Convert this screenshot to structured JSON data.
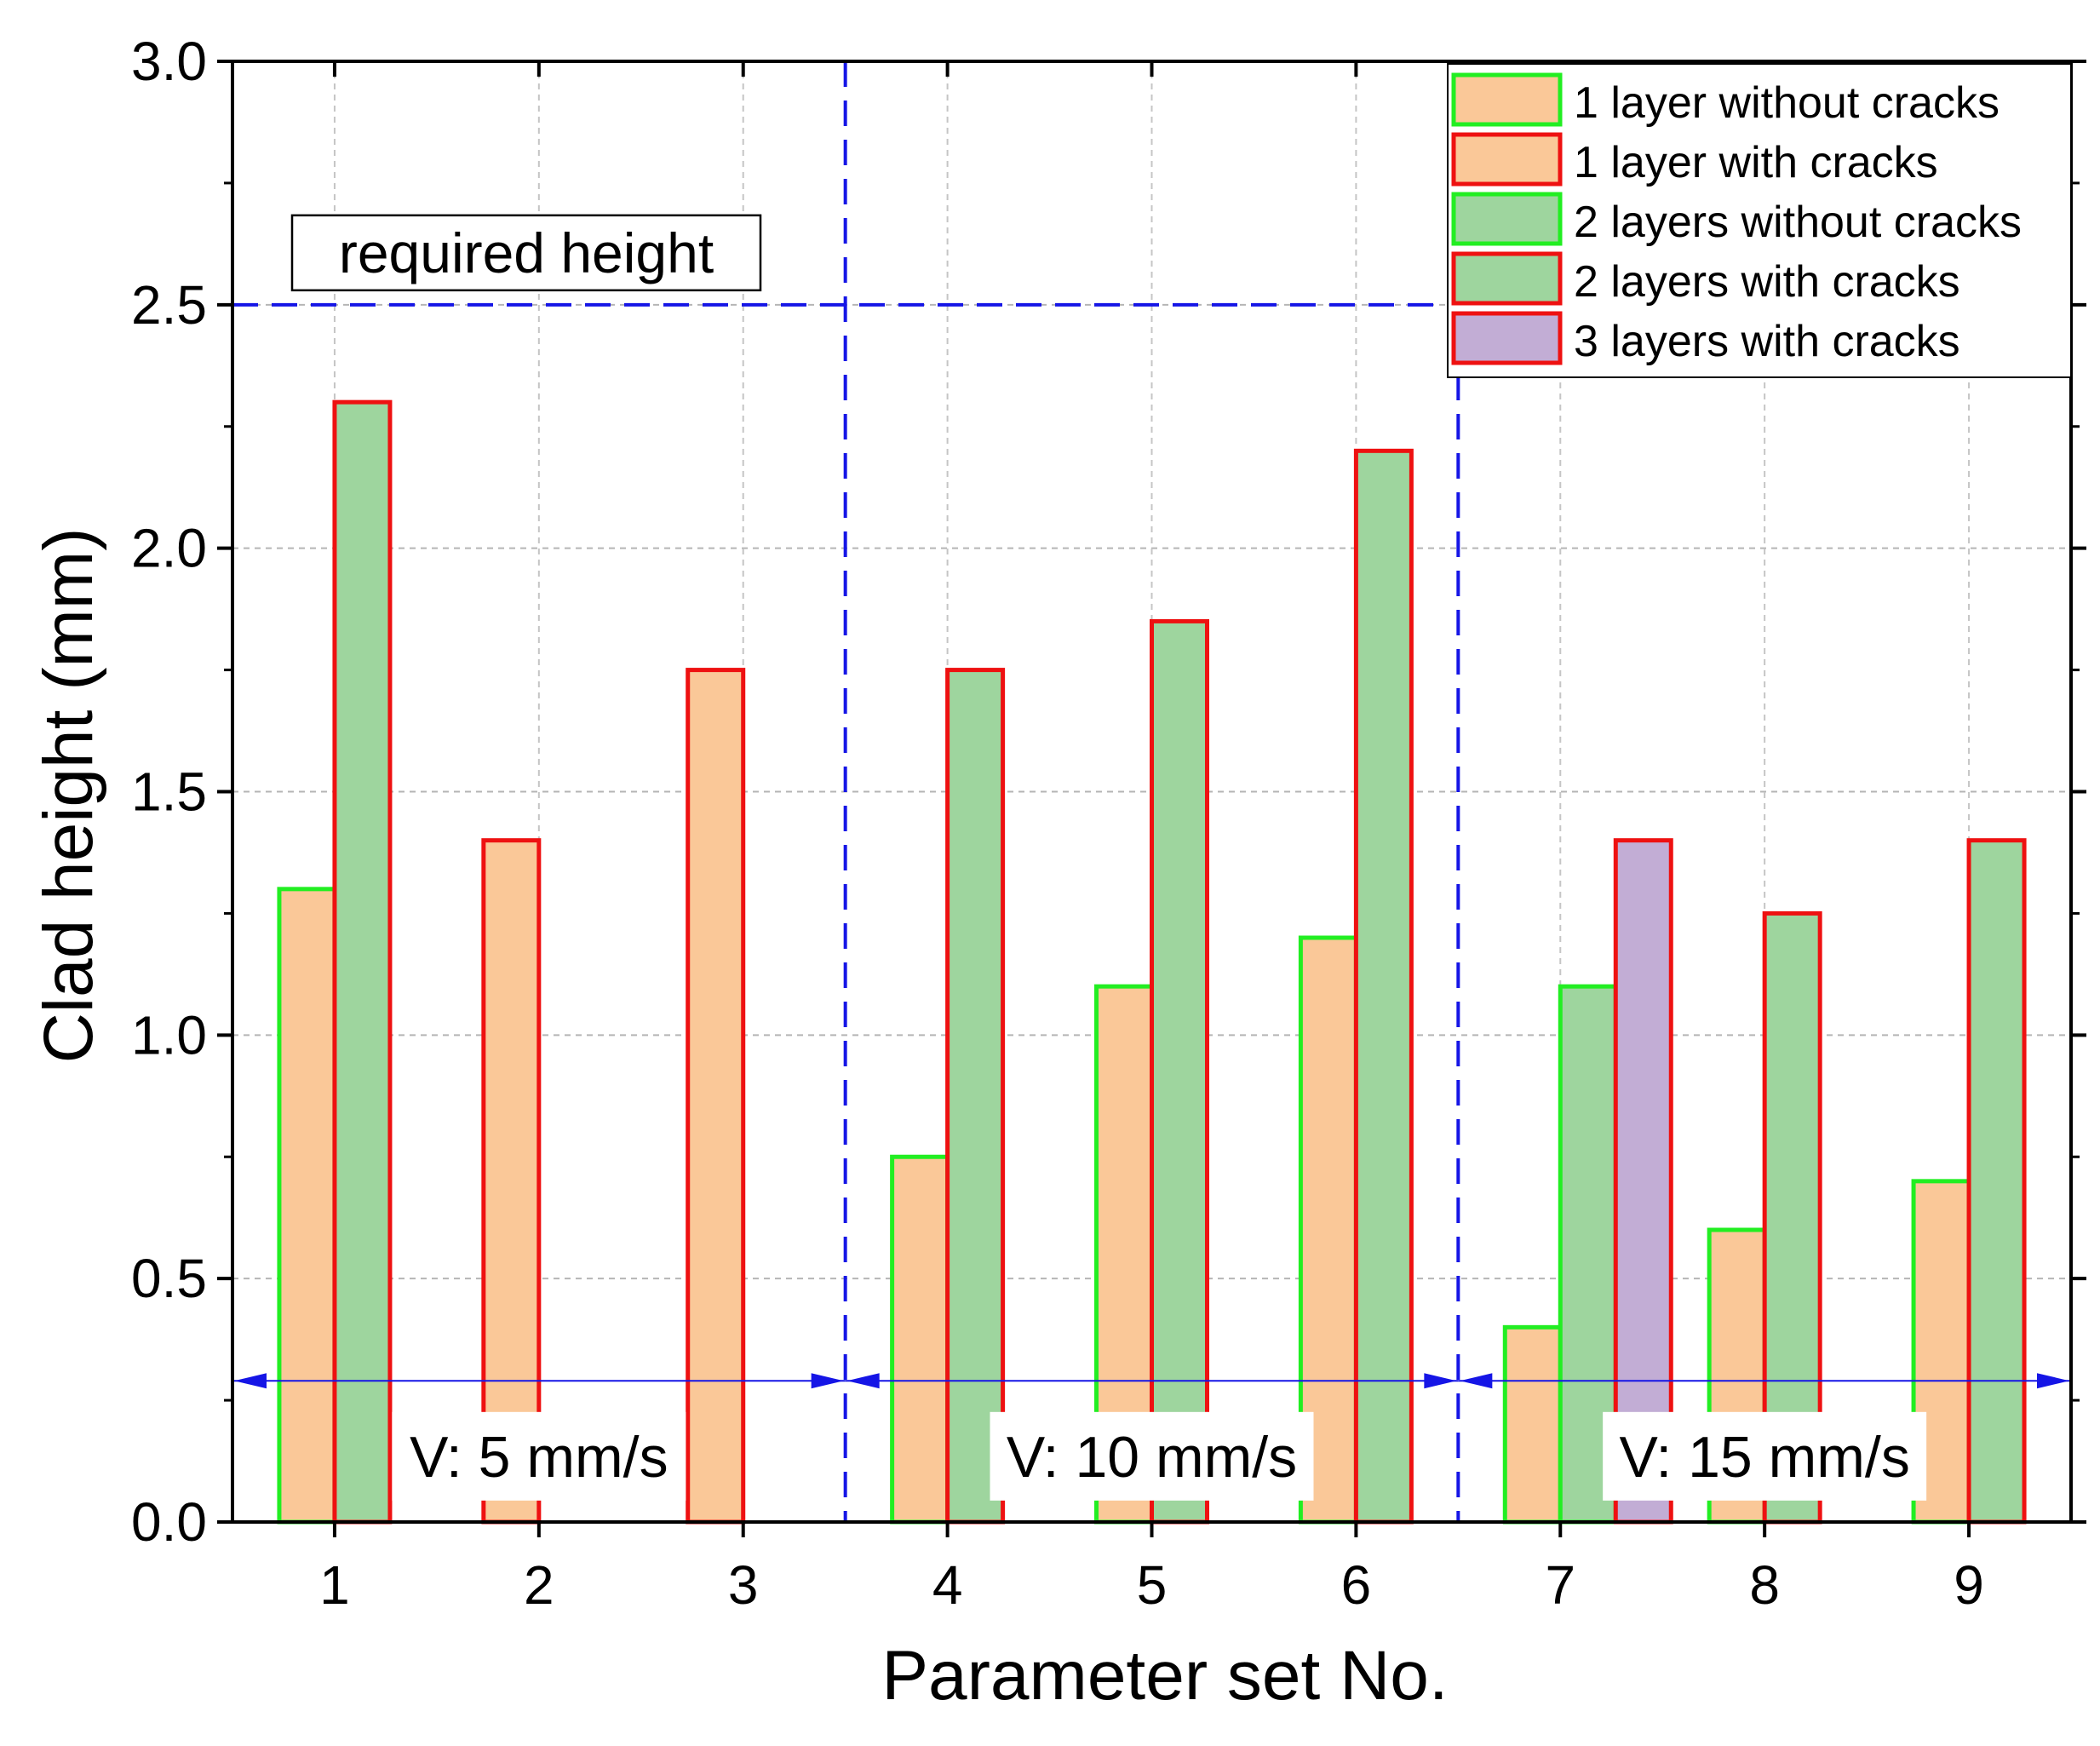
{
  "colors": {
    "fill_1layer": "#FAC898",
    "fill_2layers": "#9ED59E",
    "fill_3layers": "#C2ADD5",
    "edge_no_cracks": "#22EE22",
    "edge_cracks": "#EE1111",
    "ref_lines": "#1515E6"
  },
  "chart_data": {
    "type": "bar",
    "xlabel": "Parameter set No.",
    "ylabel": "Clad height (mm)",
    "categories": [
      "1",
      "2",
      "3",
      "4",
      "5",
      "6",
      "7",
      "8",
      "9"
    ],
    "ylim": [
      0,
      3.0
    ],
    "yticks": [
      "0.0",
      "0.5",
      "1.0",
      "1.5",
      "2.0",
      "2.5",
      "3.0"
    ],
    "grid": true,
    "bars": [
      {
        "category": "1",
        "slot": 0,
        "series": "1 layer without cracks",
        "value": 1.3
      },
      {
        "category": "1",
        "slot": 1,
        "series": "2 layers with cracks",
        "value": 2.3
      },
      {
        "category": "2",
        "slot": 0,
        "series": "1 layer with cracks",
        "value": 1.4
      },
      {
        "category": "3",
        "slot": 0,
        "series": "1 layer with cracks",
        "value": 1.75
      },
      {
        "category": "4",
        "slot": 0,
        "series": "1 layer without cracks",
        "value": 0.75
      },
      {
        "category": "4",
        "slot": 1,
        "series": "2 layers with cracks",
        "value": 1.75
      },
      {
        "category": "5",
        "slot": 0,
        "series": "1 layer without cracks",
        "value": 1.1
      },
      {
        "category": "5",
        "slot": 1,
        "series": "2 layers with cracks",
        "value": 1.85
      },
      {
        "category": "6",
        "slot": 0,
        "series": "1 layer without cracks",
        "value": 1.2
      },
      {
        "category": "6",
        "slot": 1,
        "series": "2 layers with cracks",
        "value": 2.2
      },
      {
        "category": "7",
        "slot": 0,
        "series": "1 layer without cracks",
        "value": 0.4
      },
      {
        "category": "7",
        "slot": 1,
        "series": "2 layers without cracks",
        "value": 1.1
      },
      {
        "category": "7",
        "slot": 2,
        "series": "3 layers with cracks",
        "value": 1.4
      },
      {
        "category": "8",
        "slot": 0,
        "series": "1 layer without cracks",
        "value": 0.6
      },
      {
        "category": "8",
        "slot": 1,
        "series": "2 layers with cracks",
        "value": 1.25
      },
      {
        "category": "9",
        "slot": 0,
        "series": "1 layer without cracks",
        "value": 0.7
      },
      {
        "category": "9",
        "slot": 1,
        "series": "2 layers with cracks",
        "value": 1.4
      }
    ],
    "legend": {
      "placement": "top-right",
      "entries": [
        {
          "label": "1 layer without cracks",
          "fill": "fill_1layer",
          "edge": "edge_no_cracks"
        },
        {
          "label": "1 layer with cracks",
          "fill": "fill_1layer",
          "edge": "edge_cracks"
        },
        {
          "label": "2 layers without cracks",
          "fill": "fill_2layers",
          "edge": "edge_no_cracks"
        },
        {
          "label": "2 layers with cracks",
          "fill": "fill_2layers",
          "edge": "edge_cracks"
        },
        {
          "label": "3 layers with cracks",
          "fill": "fill_3layers",
          "edge": "edge_cracks"
        }
      ]
    },
    "reference_line": {
      "value": 2.5,
      "label": "required height"
    },
    "separators": [
      3.5,
      6.5
    ],
    "speed_groups": [
      {
        "label": "V: 5 mm/s",
        "from": 0.5,
        "to": 3.5
      },
      {
        "label": "V: 10 mm/s",
        "from": 3.5,
        "to": 6.5
      },
      {
        "label": "V: 15 mm/s",
        "from": 6.5,
        "to": 9.5
      }
    ],
    "speed_arrow_level": 0.29
  }
}
